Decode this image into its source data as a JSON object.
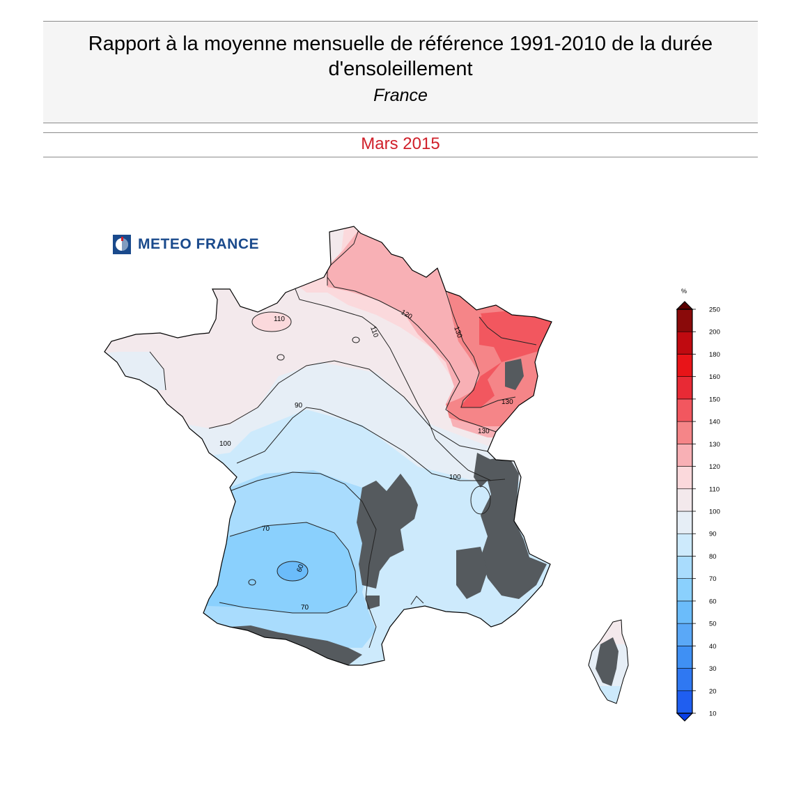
{
  "header": {
    "title_line1": "Rapport à la moyenne mensuelle de référence 1991-2010 de la durée",
    "title_line2": "d'ensoleillement",
    "region": "France"
  },
  "period": "Mars 2015",
  "logo": {
    "text": "METEO FRANCE",
    "icon": "meteo-france-logo-icon"
  },
  "legend": {
    "unit": "%",
    "levels": [
      "10",
      "20",
      "30",
      "40",
      "50",
      "60",
      "70",
      "80",
      "90",
      "100",
      "110",
      "120",
      "130",
      "140",
      "150",
      "160",
      "180",
      "200",
      "250"
    ],
    "colors": [
      "#0a3fe6",
      "#1f5ef0",
      "#2f78f2",
      "#3f90f4",
      "#5aa8f7",
      "#6bbcfa",
      "#8ad0fd",
      "#a9dcfd",
      "#cdeafc",
      "#e6eef6",
      "#f3e9ec",
      "#fbd9dc",
      "#f8b0b5",
      "#f58588",
      "#f2575f",
      "#e82a35",
      "#e81418",
      "#c00a10",
      "#8a0a0a",
      "#5a0000"
    ]
  },
  "contours": {
    "labels": [
      "110",
      "120",
      "110",
      "130",
      "130",
      "130",
      "100",
      "100",
      "90",
      "70",
      "70",
      "60"
    ]
  }
}
